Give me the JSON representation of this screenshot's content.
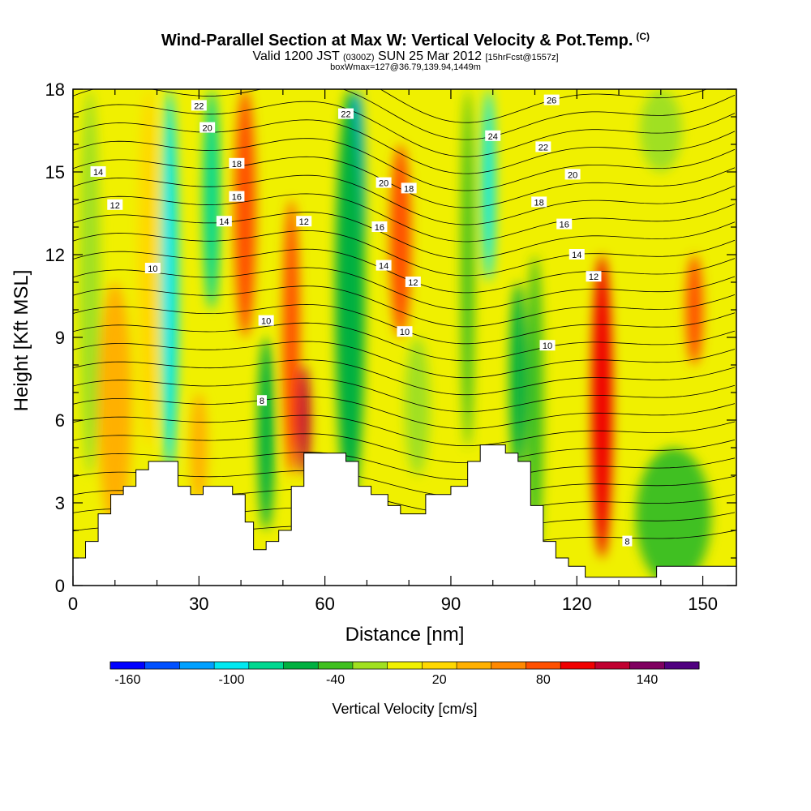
{
  "header": {
    "title": "Wind-Parallel Section at Max W: Vertical Velocity & Pot.Temp.",
    "copyright_mark": "(C)",
    "valid_prefix": "Valid 1200 JST",
    "valid_utc": "(0300Z)",
    "valid_date": "SUN 25 Mar 2012",
    "forecast_tag": "[15hrFcst@1557z]",
    "box_info": "boxWmax=127@36.79,139.94,1449m"
  },
  "chart_data": {
    "type": "heatmap",
    "xlabel": "Distance [nm]",
    "ylabel": "Height [Kft MSL]",
    "xlim": [
      0,
      158
    ],
    "ylim": [
      0,
      18
    ],
    "x_ticks": [
      0,
      30,
      60,
      90,
      120,
      150
    ],
    "y_ticks": [
      0,
      3,
      6,
      9,
      12,
      15,
      18
    ],
    "colorbar": {
      "label": "Vertical Velocity [cm/s]",
      "tick_values": [
        -160,
        -100,
        -40,
        20,
        80,
        140
      ],
      "tick_labels": [
        "-160",
        "-100",
        "-40",
        "20",
        "80",
        "140"
      ],
      "range": [
        -170,
        170
      ],
      "colors": [
        "#0000ff",
        "#0050ff",
        "#00a0ff",
        "#00e8f0",
        "#00d890",
        "#00b040",
        "#40c020",
        "#a0e020",
        "#f0f000",
        "#ffd800",
        "#ffb000",
        "#ff8800",
        "#ff5000",
        "#f00000",
        "#c00030",
        "#800060",
        "#500080"
      ]
    },
    "velocity_bands": [
      {
        "x": 4,
        "w": 5,
        "v": -30,
        "y0": 4,
        "y1": 18
      },
      {
        "x": 10,
        "w": 8,
        "v": 40,
        "y0": 2,
        "y1": 11
      },
      {
        "x": 18,
        "w": 5,
        "v": 20,
        "y0": 5,
        "y1": 18
      },
      {
        "x": 23,
        "w": 4,
        "v": -95,
        "y0": 4,
        "y1": 18
      },
      {
        "x": 30,
        "w": 4,
        "v": 30,
        "y0": 3,
        "y1": 7
      },
      {
        "x": 33,
        "w": 4,
        "v": -80,
        "y0": 10,
        "y1": 18
      },
      {
        "x": 41,
        "w": 5,
        "v": 80,
        "y0": 9,
        "y1": 18
      },
      {
        "x": 46,
        "w": 4,
        "v": -55,
        "y0": 2,
        "y1": 9
      },
      {
        "x": 52,
        "w": 4,
        "v": 70,
        "y0": 4,
        "y1": 14
      },
      {
        "x": 55,
        "w": 3,
        "v": 110,
        "y0": 4,
        "y1": 8
      },
      {
        "x": 68,
        "w": 3,
        "v": -130,
        "y0": 9,
        "y1": 18
      },
      {
        "x": 66,
        "w": 7,
        "v": -70,
        "y0": 3,
        "y1": 18
      },
      {
        "x": 78,
        "w": 5,
        "v": 80,
        "y0": 9,
        "y1": 16
      },
      {
        "x": 82,
        "w": 6,
        "v": -30,
        "y0": 4,
        "y1": 9
      },
      {
        "x": 94,
        "w": 3,
        "v": -50,
        "y0": 5,
        "y1": 18
      },
      {
        "x": 99,
        "w": 3,
        "v": -110,
        "y0": 11,
        "y1": 18
      },
      {
        "x": 106,
        "w": 4,
        "v": -70,
        "y0": 4,
        "y1": 11
      },
      {
        "x": 110,
        "w": 4,
        "v": -40,
        "y0": 1,
        "y1": 12
      },
      {
        "x": 126,
        "w": 2,
        "v": 150,
        "y0": 4,
        "y1": 9
      },
      {
        "x": 126,
        "w": 5,
        "v": 90,
        "y0": 1,
        "y1": 12
      },
      {
        "x": 143,
        "w": 18,
        "v": -35,
        "y0": 0,
        "y1": 5
      },
      {
        "x": 148,
        "w": 4,
        "v": 70,
        "y0": 8,
        "y1": 12
      },
      {
        "x": 140,
        "w": 10,
        "v": -20,
        "y0": 15,
        "y1": 18
      }
    ],
    "terrain_profile": [
      [
        0,
        1.0
      ],
      [
        3,
        1.0
      ],
      [
        3,
        1.6
      ],
      [
        6,
        1.6
      ],
      [
        6,
        2.6
      ],
      [
        9,
        2.6
      ],
      [
        9,
        3.3
      ],
      [
        12,
        3.3
      ],
      [
        12,
        3.6
      ],
      [
        15,
        3.6
      ],
      [
        15,
        4.2
      ],
      [
        18,
        4.2
      ],
      [
        18,
        4.5
      ],
      [
        25,
        4.5
      ],
      [
        25,
        3.6
      ],
      [
        28,
        3.6
      ],
      [
        28,
        3.3
      ],
      [
        31,
        3.3
      ],
      [
        31,
        3.6
      ],
      [
        38,
        3.6
      ],
      [
        38,
        3.3
      ],
      [
        41,
        3.3
      ],
      [
        41,
        2.3
      ],
      [
        43,
        2.3
      ],
      [
        43,
        1.3
      ],
      [
        46,
        1.3
      ],
      [
        46,
        1.6
      ],
      [
        49,
        1.6
      ],
      [
        49,
        2.0
      ],
      [
        52,
        2.0
      ],
      [
        52,
        3.6
      ],
      [
        55,
        3.6
      ],
      [
        55,
        4.8
      ],
      [
        65,
        4.8
      ],
      [
        65,
        4.5
      ],
      [
        68,
        4.5
      ],
      [
        68,
        3.6
      ],
      [
        71,
        3.6
      ],
      [
        71,
        3.3
      ],
      [
        75,
        3.3
      ],
      [
        75,
        2.9
      ],
      [
        78,
        2.9
      ],
      [
        78,
        2.6
      ],
      [
        84,
        2.6
      ],
      [
        84,
        3.3
      ],
      [
        90,
        3.3
      ],
      [
        90,
        3.6
      ],
      [
        94,
        3.6
      ],
      [
        94,
        4.5
      ],
      [
        97,
        4.5
      ],
      [
        97,
        5.1
      ],
      [
        103,
        5.1
      ],
      [
        103,
        4.8
      ],
      [
        106,
        4.8
      ],
      [
        106,
        4.5
      ],
      [
        109,
        4.5
      ],
      [
        109,
        2.9
      ],
      [
        112,
        2.9
      ],
      [
        112,
        1.6
      ],
      [
        115,
        1.6
      ],
      [
        115,
        1.0
      ],
      [
        118,
        1.0
      ],
      [
        118,
        0.7
      ],
      [
        122,
        0.7
      ],
      [
        122,
        0.3
      ],
      [
        139,
        0.3
      ],
      [
        139,
        0.7
      ],
      [
        158,
        0.7
      ]
    ],
    "theta_contour_labels": [
      {
        "text": "22",
        "x": 30,
        "y": 17.4
      },
      {
        "text": "20",
        "x": 32,
        "y": 16.6
      },
      {
        "text": "18",
        "x": 39,
        "y": 15.3
      },
      {
        "text": "16",
        "x": 39,
        "y": 14.1
      },
      {
        "text": "14",
        "x": 6,
        "y": 15.0
      },
      {
        "text": "12",
        "x": 10,
        "y": 13.8
      },
      {
        "text": "14",
        "x": 36,
        "y": 13.2
      },
      {
        "text": "12",
        "x": 55,
        "y": 13.2
      },
      {
        "text": "10",
        "x": 19,
        "y": 11.5
      },
      {
        "text": "10",
        "x": 46,
        "y": 9.6
      },
      {
        "text": "8",
        "x": 45,
        "y": 6.7
      },
      {
        "text": "22",
        "x": 65,
        "y": 17.1
      },
      {
        "text": "20",
        "x": 74,
        "y": 14.6
      },
      {
        "text": "18",
        "x": 80,
        "y": 14.4
      },
      {
        "text": "16",
        "x": 73,
        "y": 13.0
      },
      {
        "text": "14",
        "x": 74,
        "y": 11.6
      },
      {
        "text": "12",
        "x": 81,
        "y": 11.0
      },
      {
        "text": "10",
        "x": 79,
        "y": 9.2
      },
      {
        "text": "24",
        "x": 100,
        "y": 16.3
      },
      {
        "text": "26",
        "x": 114,
        "y": 17.6
      },
      {
        "text": "22",
        "x": 112,
        "y": 15.9
      },
      {
        "text": "20",
        "x": 119,
        "y": 14.9
      },
      {
        "text": "18",
        "x": 111,
        "y": 13.9
      },
      {
        "text": "16",
        "x": 117,
        "y": 13.1
      },
      {
        "text": "14",
        "x": 120,
        "y": 12.0
      },
      {
        "text": "12",
        "x": 124,
        "y": 11.2
      },
      {
        "text": "10",
        "x": 113,
        "y": 8.7
      },
      {
        "text": "8",
        "x": 132,
        "y": 1.6
      }
    ]
  }
}
